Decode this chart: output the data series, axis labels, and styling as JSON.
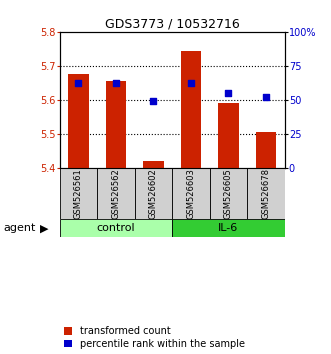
{
  "title": "GDS3773 / 10532716",
  "samples": [
    "GSM526561",
    "GSM526562",
    "GSM526602",
    "GSM526603",
    "GSM526605",
    "GSM526678"
  ],
  "bar_values": [
    5.675,
    5.655,
    5.42,
    5.745,
    5.59,
    5.505
  ],
  "percentile_pcts": [
    62,
    62,
    49,
    62,
    55,
    52
  ],
  "bar_bottom": 5.4,
  "ylim_left": [
    5.4,
    5.8
  ],
  "ylim_right": [
    0,
    100
  ],
  "yticks_left": [
    5.4,
    5.5,
    5.6,
    5.7,
    5.8
  ],
  "yticks_right": [
    0,
    25,
    50,
    75,
    100
  ],
  "ytick_labels_right": [
    "0",
    "25",
    "50",
    "75",
    "100%"
  ],
  "bar_color": "#cc2200",
  "percentile_color": "#0000cc",
  "control_color": "#aaffaa",
  "il6_color": "#33cc33",
  "label_color_left": "#cc2200",
  "label_color_right": "#0000cc",
  "legend_items": [
    "transformed count",
    "percentile rank within the sample"
  ],
  "agent_label": "agent",
  "bar_width": 0.55,
  "sample_box_color": "#d0d0d0",
  "group_spans": [
    {
      "name": "control",
      "start": 0,
      "end": 2,
      "color": "#aaffaa"
    },
    {
      "name": "IL-6",
      "start": 3,
      "end": 5,
      "color": "#33cc33"
    }
  ]
}
